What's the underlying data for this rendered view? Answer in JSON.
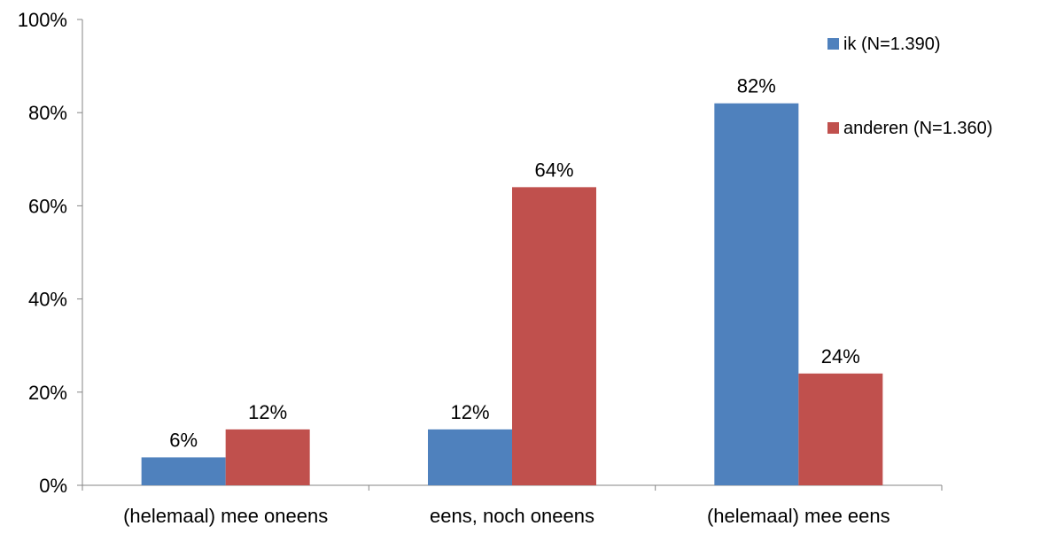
{
  "chart_data": {
    "type": "bar",
    "categories": [
      "(helemaal) mee oneens",
      "eens, noch oneens",
      "(helemaal) mee eens"
    ],
    "series": [
      {
        "name": "ik (N=1.390)",
        "values": [
          6,
          12,
          82
        ],
        "color": "#4F81BD"
      },
      {
        "name": "anderen (N=1.360)",
        "values": [
          12,
          64,
          24
        ],
        "color": "#C0504D"
      }
    ],
    "ylim": [
      0,
      100
    ],
    "yticks": [
      "0%",
      "20%",
      "40%",
      "60%",
      "80%",
      "100%"
    ],
    "value_suffix": "%",
    "grid": false,
    "legend_position": "top-right"
  }
}
